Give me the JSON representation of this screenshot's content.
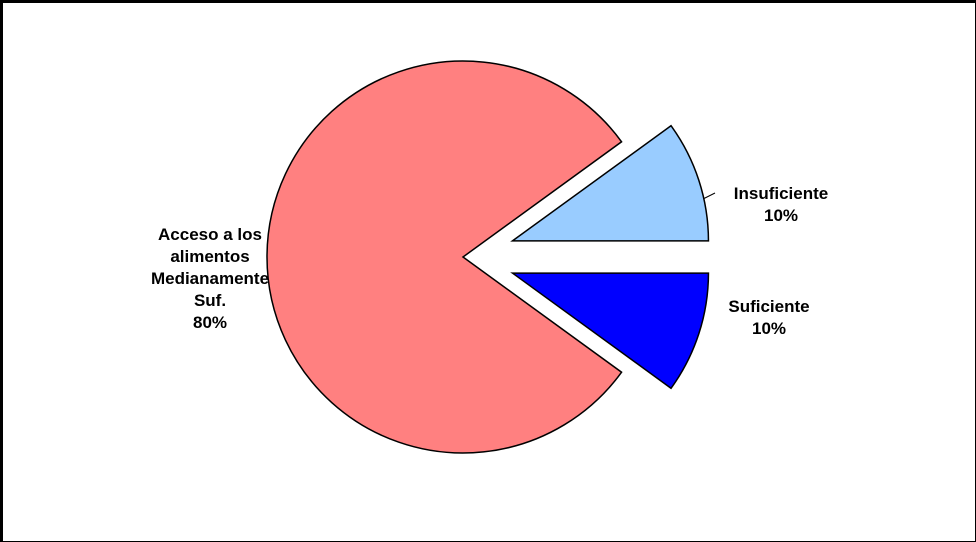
{
  "chart_data": {
    "type": "pie",
    "categories": [
      "Insuficiente",
      "Acceso a los alimentos Medianamente Suf.",
      "Suficiente"
    ],
    "values": [
      10,
      80,
      10
    ],
    "value_labels": [
      "10%",
      "80%",
      "10%"
    ],
    "colors": [
      "#99ccff",
      "#ff8080",
      "#0000ff"
    ],
    "explode": [
      true,
      false,
      true
    ]
  }
}
